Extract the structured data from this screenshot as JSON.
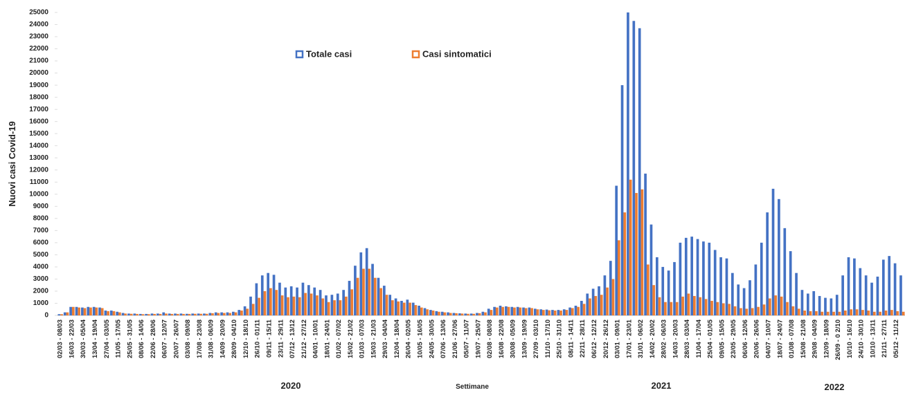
{
  "chart_data": {
    "type": "bar",
    "ylabel": "Nuovi casi Covid-19",
    "xlabel": "Settimane",
    "year_labels": [
      "2020",
      "2021",
      "2022"
    ],
    "categories": [
      "02/03 - 08/03",
      null,
      "16/03 - 22/03",
      null,
      "30/03 - 05/04",
      null,
      "13/04 - 19/04",
      null,
      "27/04 - 03/05",
      null,
      "11/05 - 17/05",
      null,
      "25/05 - 31/05",
      null,
      "08/06 - 14/06",
      null,
      "22/06 - 28/06",
      null,
      "06/07 - 12/07",
      null,
      "20/07 - 26/07",
      null,
      "03/08 - 09/08",
      null,
      "17/08 - 23/08",
      null,
      "31/08 - 06/09",
      null,
      "14/09 - 20/09",
      null,
      "28/09 - 04/10",
      null,
      "12/10 - 18/10",
      null,
      "26/10 - 01/11",
      null,
      "09/11 - 15/11",
      null,
      "23/11 - 29/11",
      null,
      "07/12 - 13/12",
      null,
      "21/12 - 27/12",
      null,
      "04/01 - 10/01",
      null,
      "18/01 - 24/01",
      null,
      "01/02 - 07/02",
      null,
      "15/02 - 21/02",
      null,
      "01/03 - 07/03",
      null,
      "15/03 - 21/03",
      null,
      "29/03 - 04/04",
      null,
      "12/04 - 18/04",
      null,
      "26/04 - 02/05",
      null,
      "10/05 - 16/05",
      null,
      "24/05 - 30/05",
      null,
      "07/06 - 13/06",
      null,
      "21/06 - 27/06",
      null,
      "05/07 - 11/07",
      null,
      "19/07 - 25/07",
      null,
      "02/08 - 08/08",
      null,
      "16/08 - 22/08",
      null,
      "30/08 - 05/09",
      null,
      "13/09 - 19/09",
      null,
      "27/09 - 03/10",
      null,
      "11/10 - 17/10",
      null,
      "25/10 - 31/10",
      null,
      "08/11 - 14/11",
      null,
      "22/11 - 28/11",
      null,
      "06/12 - 12/12",
      null,
      "20/12 - 26/12",
      null,
      "03/01 - 09/01",
      null,
      "17/01 - 23/01",
      null,
      "31/01 - 06/02",
      null,
      "14/02 - 20/02",
      null,
      "28/02 - 06/03",
      null,
      "14/03 - 20/03",
      null,
      "28/03 - 03/04",
      null,
      "11/04 - 17/04",
      null,
      "25/04 - 01/05",
      null,
      "09/05 - 15/05",
      null,
      "23/05 - 29/05",
      null,
      "06/06 - 12/06",
      null,
      "20/06 - 26/06",
      null,
      "04/07 - 10/07",
      null,
      "18/07 - 24/07",
      null,
      "01/08 - 07/08",
      null,
      "15/08 - 21/08",
      null,
      "29/08 - 04/09",
      null,
      "12/09 - 18/09",
      null,
      "26/09 - 0 2/10",
      null,
      "10/10 - 16/10",
      null,
      "24/10 - 30/10",
      null,
      "10/10 - 13/11",
      null,
      "21/11 - 27/11",
      null,
      "05/12 - 11/12",
      null
    ],
    "series": [
      {
        "name": "Totale casi",
        "color": "#4472c4",
        "values": [
          100,
          250,
          700,
          700,
          650,
          700,
          700,
          650,
          400,
          400,
          300,
          200,
          150,
          150,
          120,
          120,
          150,
          150,
          250,
          150,
          150,
          150,
          130,
          150,
          150,
          150,
          200,
          250,
          250,
          250,
          300,
          450,
          750,
          1550,
          2650,
          3300,
          3500,
          3350,
          2700,
          2300,
          2400,
          2300,
          2700,
          2500,
          2300,
          2100,
          1650,
          1700,
          1800,
          2100,
          2850,
          4100,
          5200,
          5550,
          4250,
          3100,
          2450,
          1700,
          1400,
          1200,
          1300,
          1050,
          800,
          600,
          450,
          350,
          300,
          250,
          200,
          170,
          150,
          150,
          200,
          300,
          550,
          700,
          800,
          750,
          700,
          700,
          650,
          650,
          550,
          500,
          480,
          450,
          450,
          500,
          650,
          800,
          1200,
          1800,
          2200,
          2400,
          3300,
          4500,
          10700,
          19000,
          25000,
          24300,
          23700,
          11700,
          7500,
          4800,
          4000,
          3700,
          4400,
          6000,
          6400,
          6500,
          6300,
          6100,
          6000,
          5400,
          4800,
          4700,
          3500,
          2550,
          2250,
          2900,
          4200,
          6000,
          8500,
          10450,
          9600,
          7200,
          5300,
          3500,
          2100,
          1800,
          2000,
          1600,
          1450,
          1400,
          1700,
          3300,
          4800,
          4700,
          3900,
          3300,
          2700,
          3200,
          4600,
          4900,
          4300,
          3300
        ]
      },
      {
        "name": "Casi sintomatici",
        "color": "#ed7d31",
        "values": [
          100,
          250,
          700,
          650,
          600,
          650,
          650,
          600,
          350,
          350,
          250,
          150,
          130,
          120,
          100,
          100,
          120,
          120,
          150,
          120,
          120,
          120,
          120,
          130,
          130,
          130,
          180,
          200,
          200,
          200,
          250,
          400,
          550,
          950,
          1450,
          2000,
          2250,
          2100,
          1650,
          1500,
          1550,
          1500,
          1850,
          1800,
          1650,
          1400,
          1100,
          1250,
          1250,
          1550,
          2150,
          3100,
          3850,
          3850,
          3100,
          2250,
          1700,
          1250,
          1150,
          1050,
          1050,
          850,
          650,
          500,
          400,
          300,
          250,
          200,
          180,
          150,
          130,
          130,
          180,
          250,
          450,
          650,
          700,
          700,
          650,
          650,
          600,
          600,
          500,
          450,
          420,
          400,
          400,
          450,
          600,
          700,
          950,
          1400,
          1600,
          1700,
          2300,
          3000,
          6200,
          8500,
          11200,
          10100,
          10400,
          4200,
          2500,
          1500,
          1100,
          1100,
          1100,
          1550,
          1800,
          1600,
          1500,
          1350,
          1200,
          1100,
          1000,
          950,
          750,
          600,
          550,
          600,
          700,
          900,
          1400,
          1650,
          1550,
          1100,
          750,
          550,
          400,
          350,
          350,
          300,
          300,
          300,
          300,
          400,
          500,
          500,
          450,
          400,
          300,
          300,
          400,
          450,
          350,
          300
        ]
      }
    ],
    "ylim": [
      0,
      25000
    ],
    "yticks": [
      0,
      1000,
      2000,
      3000,
      4000,
      5000,
      6000,
      7000,
      8000,
      9000,
      10000,
      11000,
      12000,
      13000,
      14000,
      15000,
      16000,
      17000,
      18000,
      19000,
      20000,
      21000,
      22000,
      23000,
      24000,
      25000
    ],
    "grid": false
  }
}
